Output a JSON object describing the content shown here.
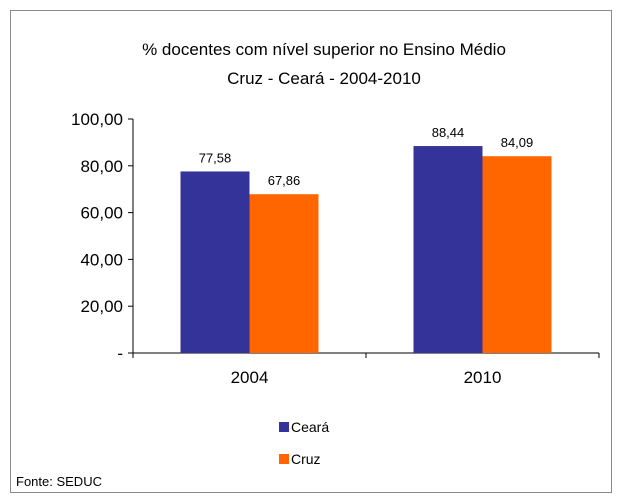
{
  "chart_data": {
    "type": "bar",
    "title": "% docentes com nível  superior no Ensino Médio",
    "subtitle": "Cruz -  Ceará - 2004-2010",
    "categories": [
      "2004",
      "2010"
    ],
    "series": [
      {
        "name": "Ceará",
        "values": [
          77.58,
          88.44
        ],
        "labels": [
          "77,58",
          "88,44"
        ],
        "color": "#333399"
      },
      {
        "name": "Cruz",
        "values": [
          67.86,
          84.09
        ],
        "labels": [
          "67,86",
          "84,09"
        ],
        "color": "#FF6600"
      }
    ],
    "ylim": [
      0,
      100
    ],
    "yticks": [
      0,
      20,
      40,
      60,
      80,
      100
    ],
    "ytick_labels": [
      "-",
      "20,00",
      "40,00",
      "60,00",
      "80,00",
      "100,00"
    ],
    "grid": false,
    "legend_position": "bottom",
    "source": "Fonte: SEDUC"
  }
}
